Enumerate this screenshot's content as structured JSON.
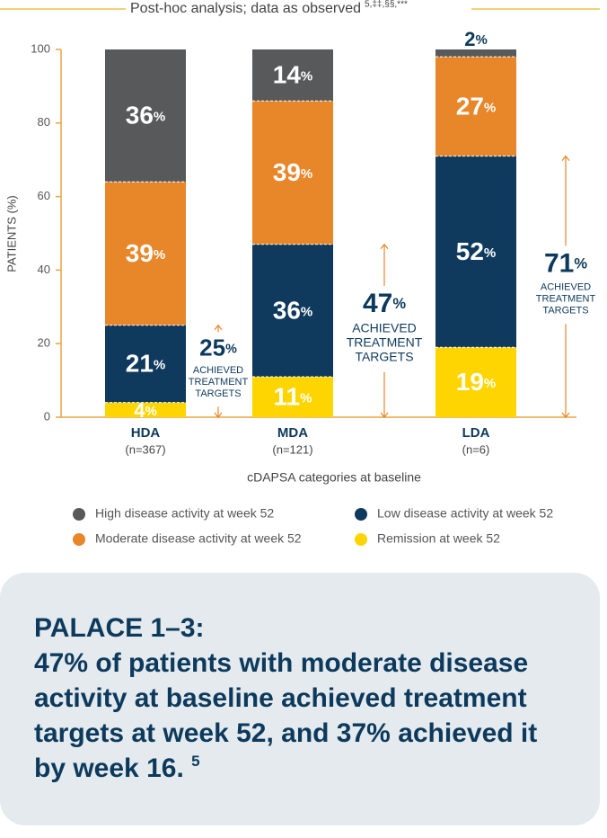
{
  "chart_data": {
    "type": "bar",
    "stacked": true,
    "title": "Post-hoc analysis; data as observed",
    "title_superscript": "5,‡‡,§§,***",
    "categories": [
      "HDA",
      "MDA",
      "LDA"
    ],
    "category_subtitles": [
      "(n=367)",
      "(n=121)",
      "(n=6)"
    ],
    "ylabel": "PATIENTS (%)",
    "xlabel": "cDAPSA categories at baseline",
    "ylim": [
      0,
      100
    ],
    "yticks": [
      0,
      20,
      40,
      60,
      80,
      100
    ],
    "series": [
      {
        "name": "Remission at week 52",
        "color": "#ffd500",
        "values": [
          4,
          11,
          19
        ],
        "value_labels": [
          "4%",
          "11%",
          "19%"
        ]
      },
      {
        "name": "Low disease activity at week 52",
        "color": "#0f3a5e",
        "values": [
          21,
          36,
          52
        ],
        "value_labels": [
          "21%",
          "36%",
          "52%"
        ]
      },
      {
        "name": "Moderate disease activity at week 52",
        "color": "#e8862a",
        "values": [
          39,
          39,
          27
        ],
        "value_labels": [
          "39%",
          "39%",
          "27%"
        ]
      },
      {
        "name": "High disease activity at week 52",
        "color": "#58595b",
        "values": [
          36,
          14,
          2
        ],
        "value_labels": [
          "36%",
          "14%",
          "2%"
        ]
      }
    ],
    "annotations": [
      {
        "value": 25,
        "label": "25%",
        "text": [
          "ACHIEVED",
          "TREATMENT",
          "TARGETS"
        ]
      },
      {
        "value": 47,
        "label": "47%",
        "text": [
          "ACHIEVED",
          "TREATMENT",
          "TARGETS"
        ]
      },
      {
        "value": 71,
        "label": "71%",
        "text": [
          "ACHIEVED",
          "TREATMENT",
          "TARGETS"
        ]
      }
    ]
  },
  "callout": {
    "title": "PALACE 1–3:",
    "text": "47% of patients with moderate disease activity at baseline achieved treatment targets at week 52, and 37% achieved it by week 16.",
    "superscript": "5"
  }
}
